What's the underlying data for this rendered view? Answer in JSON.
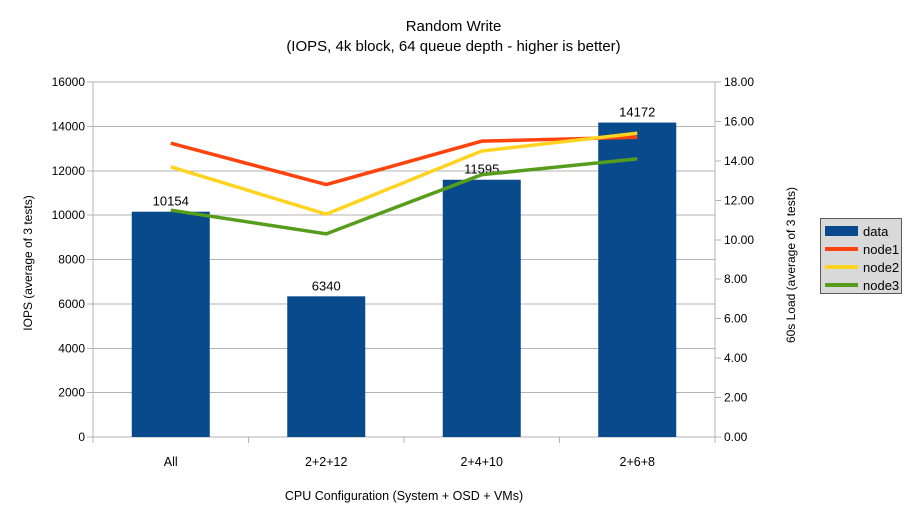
{
  "chart_data": {
    "type": "bar",
    "title": "Random Write",
    "subtitle": "(IOPS, 4k block, 64 queue depth - higher is better)",
    "xlabel": "CPU Configuration (System + OSD + VMs)",
    "ylabel_left": "IOPS (average of 3 tests)",
    "ylabel_right": "60s Load (average of 3 tests)",
    "categories": [
      "All",
      "2+2+12",
      "2+4+10",
      "2+6+8"
    ],
    "series": [
      {
        "name": "data",
        "kind": "bar",
        "axis": "left",
        "color": "#084a8c",
        "values": [
          10154,
          6340,
          11595,
          14172
        ],
        "labels": [
          "10154",
          "6340",
          "11595",
          "14172"
        ]
      },
      {
        "name": "node1",
        "kind": "line",
        "axis": "right",
        "color": "#ff420e",
        "values": [
          14.9,
          12.8,
          15.0,
          15.2
        ]
      },
      {
        "name": "node2",
        "kind": "line",
        "axis": "right",
        "color": "#ffd320",
        "values": [
          13.7,
          11.3,
          14.5,
          15.4
        ]
      },
      {
        "name": "node3",
        "kind": "line",
        "axis": "right",
        "color": "#579d1c",
        "values": [
          11.5,
          10.3,
          13.3,
          14.1
        ]
      }
    ],
    "axes": {
      "left": {
        "min": 0,
        "max": 16000,
        "step": 2000,
        "ticks": [
          "0",
          "2000",
          "4000",
          "6000",
          "8000",
          "10000",
          "12000",
          "14000",
          "16000"
        ]
      },
      "right": {
        "min": 0,
        "max": 18,
        "step": 2,
        "ticks": [
          "0.00",
          "2.00",
          "4.00",
          "6.00",
          "8.00",
          "10.00",
          "12.00",
          "14.00",
          "16.00",
          "18.00"
        ]
      }
    },
    "legend": {
      "position": "right",
      "entries": [
        "data",
        "node1",
        "node2",
        "node3"
      ]
    },
    "grid": true,
    "colors": {
      "gridline": "#b3b3b3",
      "text": "#000000",
      "legend_bg": "#d9d9d9",
      "background": "#ffffff"
    }
  }
}
